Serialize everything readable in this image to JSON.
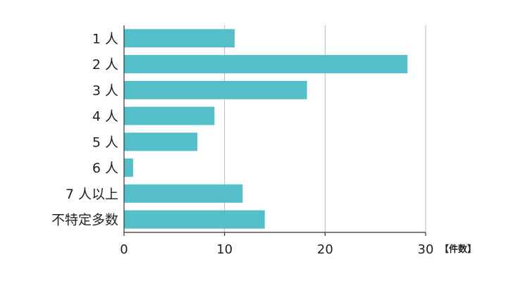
{
  "chart_data": {
    "type": "bar",
    "orientation": "horizontal",
    "categories": [
      "1 人",
      "2 人",
      "3 人",
      "4 人",
      "5 人",
      "6 人",
      "7 人以上",
      "不特定多数"
    ],
    "values": [
      11,
      28.2,
      18.2,
      9,
      7.3,
      0.9,
      11.8,
      14
    ],
    "xlim": [
      0,
      30
    ],
    "xticks": [
      "0",
      "10",
      "20",
      "30"
    ],
    "x_unit_label": "【件数】",
    "title": "",
    "xlabel": "",
    "ylabel": "",
    "grid": "vertical",
    "bar_color": "#54bfc9",
    "grid_color": "#bbbbbb",
    "axis_color": "#333333"
  }
}
